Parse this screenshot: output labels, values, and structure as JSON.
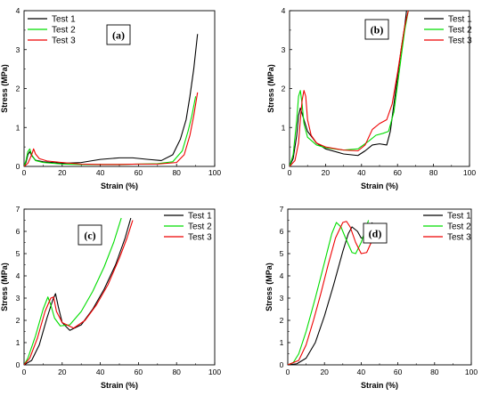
{
  "chart_data": [
    {
      "type": "line",
      "panel_label": "(a)",
      "xlabel": "Strain (%)",
      "ylabel": "Stress (MPa)",
      "xlim": [
        0,
        100
      ],
      "ylim": [
        0,
        4
      ],
      "xticks": [
        "0",
        "20",
        "40",
        "60",
        "80",
        "100"
      ],
      "yticks": [
        "0",
        "1",
        "2",
        "3",
        "4"
      ],
      "legend": "top-left",
      "series": [
        {
          "name": "Test 1",
          "color": "#000000",
          "x": [
            0,
            1,
            2,
            3,
            4,
            6,
            10,
            20,
            30,
            40,
            50,
            57,
            65,
            72,
            78,
            82,
            85,
            87,
            89,
            91
          ],
          "y": [
            0,
            0.1,
            0.3,
            0.38,
            0.28,
            0.16,
            0.12,
            0.08,
            0.1,
            0.18,
            0.22,
            0.22,
            0.18,
            0.15,
            0.3,
            0.7,
            1.2,
            1.8,
            2.5,
            3.4
          ]
        },
        {
          "name": "Test 2",
          "color": "#00dd00",
          "x": [
            0,
            1,
            2,
            3,
            4,
            6,
            10,
            20,
            30,
            40,
            50,
            60,
            70,
            78,
            83,
            86,
            88,
            90
          ],
          "y": [
            0,
            0.15,
            0.38,
            0.45,
            0.3,
            0.15,
            0.1,
            0.06,
            0.05,
            0.05,
            0.05,
            0.06,
            0.07,
            0.12,
            0.4,
            0.9,
            1.3,
            1.8
          ]
        },
        {
          "name": "Test 3",
          "color": "#ee0000",
          "x": [
            0,
            2,
            4,
            5,
            6,
            8,
            12,
            20,
            30,
            40,
            50,
            60,
            70,
            80,
            84,
            87,
            89,
            91
          ],
          "y": [
            0,
            0.08,
            0.3,
            0.45,
            0.32,
            0.2,
            0.14,
            0.1,
            0.06,
            0.05,
            0.05,
            0.06,
            0.06,
            0.1,
            0.3,
            0.8,
            1.3,
            1.9
          ]
        }
      ]
    },
    {
      "type": "line",
      "panel_label": "(b)",
      "xlabel": "Strain (%)",
      "ylabel": "Stress (MPa)",
      "xlim": [
        0,
        100
      ],
      "ylim": [
        0,
        4
      ],
      "xticks": [
        "0",
        "20",
        "40",
        "60",
        "80",
        "100"
      ],
      "yticks": [
        "0",
        "1",
        "2",
        "3",
        "4"
      ],
      "legend": "top-right",
      "series": [
        {
          "name": "Test 1",
          "color": "#000000",
          "x": [
            0,
            2,
            4,
            5,
            6,
            8,
            10,
            15,
            20,
            30,
            38,
            42,
            46,
            50,
            54,
            56,
            58,
            60,
            62,
            64,
            65
          ],
          "y": [
            0,
            0.2,
            0.8,
            1.3,
            1.5,
            1.2,
            0.9,
            0.6,
            0.45,
            0.32,
            0.28,
            0.4,
            0.55,
            0.58,
            0.55,
            0.9,
            1.6,
            2.3,
            3.0,
            3.6,
            4.0
          ]
        },
        {
          "name": "Test 2",
          "color": "#00dd00",
          "x": [
            0,
            2,
            4,
            5,
            6,
            7,
            8,
            10,
            15,
            20,
            30,
            38,
            44,
            48,
            52,
            55,
            58,
            60,
            62,
            64,
            66
          ],
          "y": [
            0,
            0.3,
            1.2,
            1.8,
            1.95,
            1.6,
            1.1,
            0.75,
            0.55,
            0.48,
            0.42,
            0.45,
            0.65,
            0.8,
            0.85,
            0.9,
            1.4,
            2.1,
            2.8,
            3.5,
            4.0
          ]
        },
        {
          "name": "Test 3",
          "color": "#ee0000",
          "x": [
            0,
            3,
            5,
            6,
            7,
            8,
            9,
            10,
            12,
            15,
            20,
            30,
            38,
            42,
            46,
            50,
            54,
            57,
            60,
            62,
            64,
            66
          ],
          "y": [
            0,
            0.15,
            0.6,
            1.2,
            1.7,
            1.95,
            1.8,
            1.2,
            0.8,
            0.6,
            0.5,
            0.42,
            0.4,
            0.55,
            0.95,
            1.1,
            1.2,
            1.6,
            2.4,
            3.0,
            3.6,
            4.0
          ]
        }
      ]
    },
    {
      "type": "line",
      "panel_label": "(c)",
      "xlabel": "Strain (%)",
      "ylabel": "Stress (MPa)",
      "xlim": [
        0,
        100
      ],
      "ylim": [
        0,
        7
      ],
      "xticks": [
        "0",
        "20",
        "40",
        "60",
        "80",
        "100"
      ],
      "yticks": [
        "0",
        "1",
        "2",
        "3",
        "4",
        "5",
        "6",
        "7"
      ],
      "legend": "top-right",
      "series": [
        {
          "name": "Test 1",
          "color": "#000000",
          "x": [
            0,
            4,
            8,
            12,
            15,
            16.5,
            18,
            20,
            24,
            30,
            36,
            42,
            48,
            53,
            56
          ],
          "y": [
            0,
            0.2,
            0.9,
            2.1,
            2.9,
            3.2,
            2.6,
            1.9,
            1.55,
            1.8,
            2.5,
            3.4,
            4.5,
            5.7,
            6.6
          ]
        },
        {
          "name": "Test 2",
          "color": "#00dd00",
          "x": [
            0,
            2,
            6,
            10,
            12.5,
            14,
            16,
            19,
            24,
            30,
            36,
            42,
            47,
            51
          ],
          "y": [
            0,
            0.3,
            1.3,
            2.5,
            3.05,
            2.7,
            2.1,
            1.75,
            1.8,
            2.4,
            3.3,
            4.4,
            5.5,
            6.6
          ]
        },
        {
          "name": "Test 3",
          "color": "#ee0000",
          "x": [
            0,
            3,
            7,
            11,
            14,
            15.5,
            17,
            20,
            26,
            32,
            38,
            44,
            50,
            54,
            57
          ],
          "y": [
            0,
            0.3,
            1.2,
            2.4,
            3.0,
            3.05,
            2.4,
            1.9,
            1.65,
            2.0,
            2.7,
            3.6,
            4.8,
            5.7,
            6.5
          ]
        }
      ]
    },
    {
      "type": "line",
      "panel_label": "(d)",
      "xlabel": "Strain (%)",
      "ylabel": "Stress (MPa)",
      "xlim": [
        0,
        100
      ],
      "ylim": [
        0,
        7
      ],
      "xticks": [
        "0",
        "20",
        "40",
        "60",
        "80",
        "100"
      ],
      "yticks": [
        "0",
        "1",
        "2",
        "3",
        "4",
        "5",
        "6",
        "7"
      ],
      "legend": "top-right",
      "series": [
        {
          "name": "Test 1",
          "color": "#000000",
          "x": [
            0,
            5,
            10,
            15,
            20,
            25,
            30,
            33,
            35,
            38,
            40,
            42,
            44,
            46
          ],
          "y": [
            0,
            0.05,
            0.3,
            1.0,
            2.2,
            3.6,
            5.1,
            5.9,
            6.2,
            6.0,
            5.7,
            5.75,
            6.0,
            6.4
          ]
        },
        {
          "name": "Test 2",
          "color": "#00dd00",
          "x": [
            0,
            3,
            6,
            10,
            15,
            20,
            24,
            26.5,
            29,
            32,
            35,
            37,
            40,
            42,
            44
          ],
          "y": [
            0,
            0.1,
            0.5,
            1.5,
            3.0,
            4.6,
            5.9,
            6.4,
            6.2,
            5.6,
            5.05,
            5.0,
            5.5,
            6.0,
            6.5
          ]
        },
        {
          "name": "Test 3",
          "color": "#ee0000",
          "x": [
            0,
            6,
            10,
            14,
            18,
            22,
            26,
            30,
            32,
            34,
            37,
            40,
            43,
            46,
            49
          ],
          "y": [
            0,
            0.2,
            0.9,
            2.0,
            3.2,
            4.5,
            5.7,
            6.4,
            6.45,
            6.2,
            5.5,
            5.0,
            5.05,
            5.6,
            6.3
          ]
        }
      ]
    }
  ]
}
